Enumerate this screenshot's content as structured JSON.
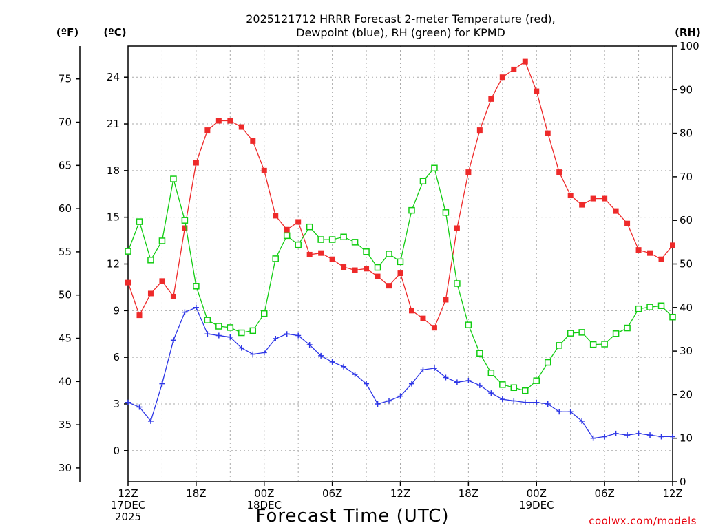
{
  "chart_data": {
    "type": "line",
    "title": [
      "2025121712 HRRR Forecast 2-meter Temperature (red),",
      "Dewpoint (blue), RH (green) for KPMD"
    ],
    "xlabel": "Forecast Time (UTC)",
    "credit": "coolwx.com/models",
    "units": {
      "f": "(ºF)",
      "c": "(ºC)",
      "rh": "(RH)"
    },
    "grid": true,
    "y_c": {
      "range": [
        -2,
        26
      ],
      "ticks": [
        0,
        3,
        6,
        9,
        12,
        15,
        18,
        21,
        24
      ]
    },
    "y_f": {
      "range": [
        28.4,
        78.8
      ],
      "ticks": [
        30,
        35,
        40,
        45,
        50,
        55,
        60,
        65,
        70,
        75
      ]
    },
    "y_rh": {
      "range": [
        0,
        100
      ],
      "ticks": [
        0,
        10,
        20,
        30,
        40,
        50,
        60,
        70,
        80,
        90,
        100
      ]
    },
    "x": {
      "start": 0,
      "end": 48,
      "step_hours": 1,
      "ticks": [
        {
          "h": 0,
          "lines": [
            "12Z",
            "17DEC",
            "2025"
          ]
        },
        {
          "h": 6,
          "lines": [
            "18Z"
          ]
        },
        {
          "h": 12,
          "lines": [
            "00Z",
            "18DEC"
          ]
        },
        {
          "h": 18,
          "lines": [
            "06Z"
          ]
        },
        {
          "h": 24,
          "lines": [
            "12Z"
          ]
        },
        {
          "h": 30,
          "lines": [
            "18Z"
          ]
        },
        {
          "h": 36,
          "lines": [
            "00Z",
            "19DEC"
          ]
        },
        {
          "h": 42,
          "lines": [
            "06Z"
          ]
        },
        {
          "h": 48,
          "lines": [
            "12Z"
          ]
        }
      ]
    },
    "series": [
      {
        "name": "Temperature",
        "unit": "C",
        "axis": "y_c",
        "color": "#ee2a2a",
        "marker": "filled-square",
        "values": [
          10.8,
          8.7,
          10.1,
          10.9,
          9.9,
          14.3,
          18.5,
          20.6,
          21.2,
          21.2,
          20.8,
          19.9,
          18.0,
          15.1,
          14.2,
          14.7,
          12.6,
          12.7,
          12.3,
          11.8,
          11.6,
          11.7,
          11.2,
          10.6,
          11.4,
          9.0,
          8.5,
          7.9,
          9.7,
          14.3,
          17.9,
          20.6,
          22.6,
          24.0,
          24.5,
          25.0,
          23.1,
          20.4,
          17.9,
          16.4,
          15.8,
          16.2,
          16.2,
          15.4,
          14.6,
          12.9,
          12.7,
          12.3,
          13.2
        ]
      },
      {
        "name": "Dewpoint",
        "unit": "C",
        "axis": "y_c",
        "color": "#2d36e6",
        "marker": "plus",
        "values": [
          3.1,
          2.8,
          1.9,
          4.3,
          7.1,
          8.9,
          9.2,
          7.5,
          7.4,
          7.3,
          6.6,
          6.2,
          6.3,
          7.2,
          7.5,
          7.4,
          6.8,
          6.1,
          5.7,
          5.4,
          4.9,
          4.3,
          3.0,
          3.2,
          3.5,
          4.3,
          5.2,
          5.3,
          4.7,
          4.4,
          4.5,
          4.2,
          3.7,
          3.3,
          3.2,
          3.1,
          3.1,
          3.0,
          2.5,
          2.5,
          1.9,
          0.8,
          0.9,
          1.1,
          1.0,
          1.1,
          1.0,
          0.9,
          0.9
        ]
      },
      {
        "name": "RH",
        "unit": "%",
        "axis": "y_rh",
        "color": "#12cc12",
        "marker": "open-square",
        "values": [
          52.9,
          59.7,
          50.9,
          55.3,
          69.5,
          60.0,
          44.9,
          37.1,
          35.7,
          35.4,
          34.2,
          34.7,
          38.6,
          51.2,
          56.5,
          54.4,
          58.5,
          55.6,
          55.6,
          56.2,
          55.0,
          52.8,
          49.2,
          52.3,
          50.5,
          62.3,
          69.0,
          72.0,
          61.8,
          45.5,
          36.0,
          29.5,
          25.0,
          22.3,
          21.6,
          20.9,
          23.2,
          27.4,
          31.3,
          34.1,
          34.3,
          31.5,
          31.6,
          34.0,
          35.3,
          39.7,
          40.1,
          40.4,
          37.8
        ]
      }
    ]
  }
}
